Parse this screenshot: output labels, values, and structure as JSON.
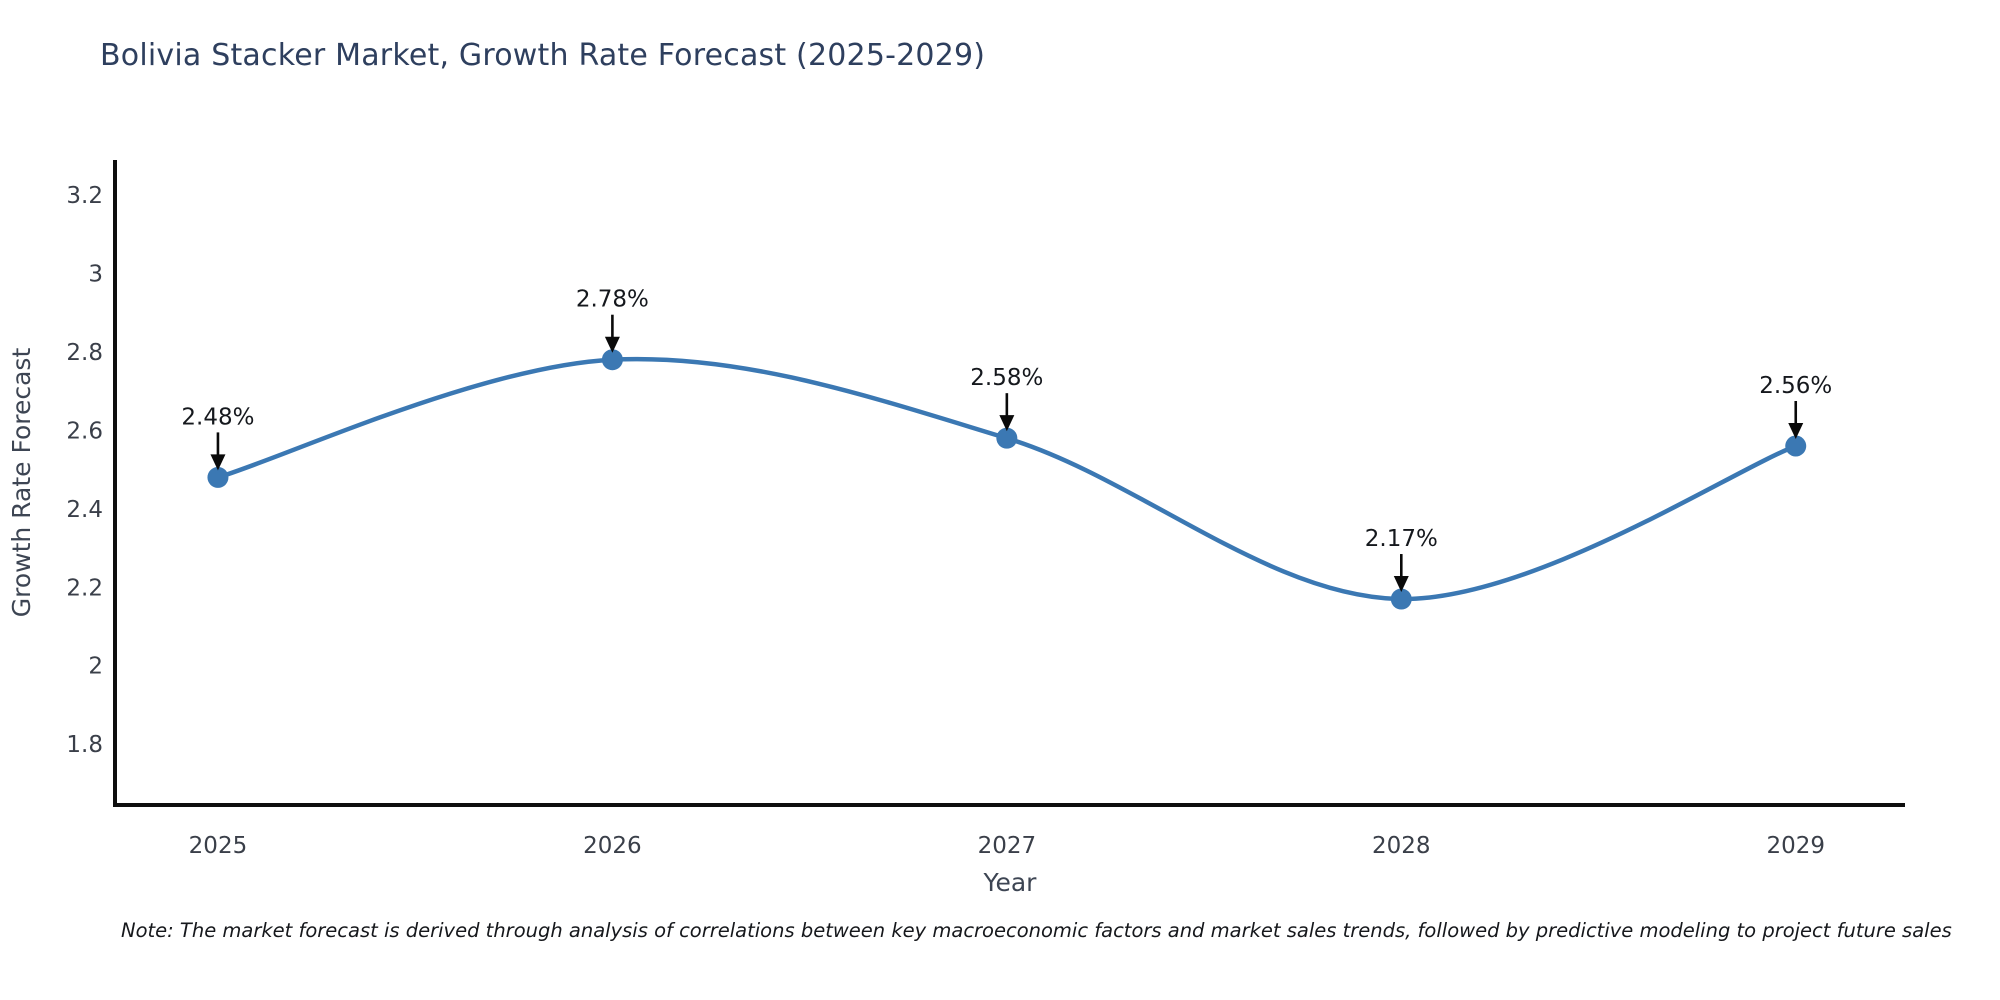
{
  "page": {
    "background": "#ffffff"
  },
  "chart_data": {
    "type": "line",
    "title": "Bolivia Stacker Market, Growth Rate Forecast (2025-2029)",
    "xlabel": "Year",
    "ylabel": "Growth Rate Forecast",
    "x": [
      2025,
      2026,
      2027,
      2028,
      2029
    ],
    "values": [
      2.48,
      2.78,
      2.58,
      2.17,
      2.56
    ],
    "point_labels": [
      "2.48%",
      "2.78%",
      "2.58%",
      "2.17%",
      "2.56%"
    ],
    "xticks": [
      "2025",
      "2026",
      "2027",
      "2028",
      "2029"
    ],
    "yticks": [
      3.2,
      3,
      2.8,
      2.6,
      2.4,
      2.2,
      2,
      1.8
    ],
    "ylim": [
      1.645,
      3.289
    ],
    "xlim": [
      2024.739,
      2029.277
    ],
    "grid": false,
    "legend": null,
    "line_smooth": true,
    "colors": {
      "line": "#3b78b3",
      "marker": "#3b78b3",
      "annotation_text": "#15181d",
      "annotation_arrow": "#0a0a0a",
      "axis": "#0e0e0e",
      "tick_label": "#3a3f49",
      "axis_label": "#3d4553",
      "title": "#2e3f5e"
    }
  },
  "note": "Note: The market forecast is derived through analysis of correlations between key macroeconomic factors and market sales trends, followed by predictive modeling to project future sales"
}
